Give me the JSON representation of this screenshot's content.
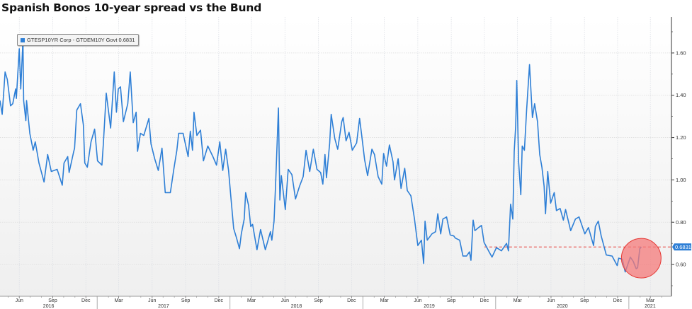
{
  "title": "Spanish Bonos 10-year spread vs the Bund",
  "colors": {
    "line": "#2e7fd6",
    "reference": "#e53935",
    "highlight": "#f47a7a",
    "background_bottom": "#efefef"
  },
  "chart_data": {
    "type": "line",
    "title": "Spanish Bonos 10-year spread vs the Bund",
    "xlim": [
      "2016-04-09",
      "2021-04-28"
    ],
    "ylim": [
      0.45,
      1.75
    ],
    "y_axis_side": "right",
    "grid": true,
    "legend": {
      "position": "top-left",
      "label": "GTESP10YR Corp - GTDEM10Y Govt 0.6831"
    },
    "last_value": 0.6831,
    "last_value_label": "0.6831",
    "reference_line": {
      "value": 0.6831,
      "from": "2019-12-01",
      "style": "dashed"
    },
    "highlight_circle": {
      "center_date": "2021-02-04",
      "center_value": 0.63
    },
    "y_ticks": [
      {
        "value": 0.6,
        "label": "0.60"
      },
      {
        "value": 0.8,
        "label": "0.80"
      },
      {
        "value": 1.0,
        "label": "1.00"
      },
      {
        "value": 1.2,
        "label": "1.20"
      },
      {
        "value": 1.4,
        "label": "1.40"
      },
      {
        "value": 1.6,
        "label": "1.60"
      }
    ],
    "x_ticks": [
      {
        "date": "2016-06-01",
        "label": "Jun"
      },
      {
        "date": "2016-09-01",
        "label": "Sep"
      },
      {
        "date": "2016-12-01",
        "label": "Dec"
      },
      {
        "date": "2017-03-01",
        "label": "Mar"
      },
      {
        "date": "2017-06-01",
        "label": "Jun"
      },
      {
        "date": "2017-09-01",
        "label": "Sep"
      },
      {
        "date": "2017-12-01",
        "label": "Dec"
      },
      {
        "date": "2018-03-01",
        "label": "Mar"
      },
      {
        "date": "2018-06-01",
        "label": "Jun"
      },
      {
        "date": "2018-09-01",
        "label": "Sep"
      },
      {
        "date": "2018-12-01",
        "label": "Dec"
      },
      {
        "date": "2019-03-01",
        "label": "Mar"
      },
      {
        "date": "2019-06-01",
        "label": "Jun"
      },
      {
        "date": "2019-09-01",
        "label": "Sep"
      },
      {
        "date": "2019-12-01",
        "label": "Dec"
      },
      {
        "date": "2020-03-01",
        "label": "Mar"
      },
      {
        "date": "2020-06-01",
        "label": "Jun"
      },
      {
        "date": "2020-09-01",
        "label": "Sep"
      },
      {
        "date": "2020-12-01",
        "label": "Dec"
      },
      {
        "date": "2021-03-01",
        "label": "Mar"
      }
    ],
    "years": [
      {
        "label": "2016",
        "start": "2016-04-09",
        "end": "2017-01-01"
      },
      {
        "label": "2017",
        "start": "2017-01-01",
        "end": "2018-01-01"
      },
      {
        "label": "2018",
        "start": "2018-01-01",
        "end": "2019-01-01"
      },
      {
        "label": "2019",
        "start": "2019-01-01",
        "end": "2020-01-01"
      },
      {
        "label": "2020",
        "start": "2020-01-01",
        "end": "2021-01-01"
      },
      {
        "label": "2021",
        "start": "2021-01-01",
        "end": "2021-04-28"
      }
    ],
    "series": [
      {
        "name": "GTESP10YR Corp - GTDEM10Y Govt",
        "points": [
          [
            "2016-04-09",
            1.375
          ],
          [
            "2016-04-15",
            1.31
          ],
          [
            "2016-04-23",
            1.51
          ],
          [
            "2016-04-29",
            1.475
          ],
          [
            "2016-05-08",
            1.35
          ],
          [
            "2016-05-14",
            1.36
          ],
          [
            "2016-05-22",
            1.43
          ],
          [
            "2016-05-24",
            1.385
          ],
          [
            "2016-06-01",
            1.62
          ],
          [
            "2016-06-05",
            1.43
          ],
          [
            "2016-06-11",
            1.66
          ],
          [
            "2016-06-13",
            1.375
          ],
          [
            "2016-06-19",
            1.28
          ],
          [
            "2016-06-21",
            1.375
          ],
          [
            "2016-06-30",
            1.22
          ],
          [
            "2016-07-09",
            1.14
          ],
          [
            "2016-07-15",
            1.18
          ],
          [
            "2016-07-25",
            1.08
          ],
          [
            "2016-08-08",
            0.99
          ],
          [
            "2016-08-18",
            1.12
          ],
          [
            "2016-08-28",
            1.04
          ],
          [
            "2016-09-13",
            1.05
          ],
          [
            "2016-09-27",
            0.975
          ],
          [
            "2016-10-02",
            1.08
          ],
          [
            "2016-10-12",
            1.11
          ],
          [
            "2016-10-16",
            1.035
          ],
          [
            "2016-10-28",
            1.13
          ],
          [
            "2016-10-31",
            1.15
          ],
          [
            "2016-11-06",
            1.33
          ],
          [
            "2016-11-16",
            1.36
          ],
          [
            "2016-11-24",
            1.26
          ],
          [
            "2016-11-28",
            1.08
          ],
          [
            "2016-12-05",
            1.06
          ],
          [
            "2016-12-15",
            1.18
          ],
          [
            "2016-12-25",
            1.24
          ],
          [
            "2017-01-02",
            1.09
          ],
          [
            "2017-01-14",
            1.07
          ],
          [
            "2017-01-18",
            1.17
          ],
          [
            "2017-01-26",
            1.41
          ],
          [
            "2017-02-07",
            1.245
          ],
          [
            "2017-02-17",
            1.51
          ],
          [
            "2017-02-23",
            1.32
          ],
          [
            "2017-02-28",
            1.43
          ],
          [
            "2017-03-06",
            1.44
          ],
          [
            "2017-03-14",
            1.275
          ],
          [
            "2017-03-26",
            1.36
          ],
          [
            "2017-04-02",
            1.51
          ],
          [
            "2017-04-10",
            1.27
          ],
          [
            "2017-04-18",
            1.32
          ],
          [
            "2017-04-22",
            1.135
          ],
          [
            "2017-04-30",
            1.22
          ],
          [
            "2017-05-09",
            1.21
          ],
          [
            "2017-05-23",
            1.29
          ],
          [
            "2017-05-29",
            1.17
          ],
          [
            "2017-06-08",
            1.1
          ],
          [
            "2017-06-18",
            1.045
          ],
          [
            "2017-06-28",
            1.15
          ],
          [
            "2017-07-07",
            0.94
          ],
          [
            "2017-07-21",
            0.94
          ],
          [
            "2017-07-31",
            1.055
          ],
          [
            "2017-08-08",
            1.14
          ],
          [
            "2017-08-13",
            1.22
          ],
          [
            "2017-08-25",
            1.22
          ],
          [
            "2017-09-08",
            1.11
          ],
          [
            "2017-09-14",
            1.23
          ],
          [
            "2017-09-20",
            1.14
          ],
          [
            "2017-09-24",
            1.32
          ],
          [
            "2017-10-02",
            1.21
          ],
          [
            "2017-10-12",
            1.235
          ],
          [
            "2017-10-20",
            1.09
          ],
          [
            "2017-11-01",
            1.16
          ],
          [
            "2017-11-15",
            1.11
          ],
          [
            "2017-11-25",
            1.07
          ],
          [
            "2017-12-04",
            1.18
          ],
          [
            "2017-12-12",
            1.045
          ],
          [
            "2017-12-20",
            1.145
          ],
          [
            "2017-12-28",
            1.045
          ],
          [
            "2018-01-03",
            0.925
          ],
          [
            "2018-01-11",
            0.77
          ],
          [
            "2018-01-19",
            0.725
          ],
          [
            "2018-01-27",
            0.675
          ],
          [
            "2018-02-01",
            0.745
          ],
          [
            "2018-02-09",
            0.815
          ],
          [
            "2018-02-13",
            0.94
          ],
          [
            "2018-02-21",
            0.88
          ],
          [
            "2018-02-27",
            0.78
          ],
          [
            "2018-03-04",
            0.79
          ],
          [
            "2018-03-16",
            0.67
          ],
          [
            "2018-03-26",
            0.765
          ],
          [
            "2018-04-08",
            0.67
          ],
          [
            "2018-04-22",
            0.755
          ],
          [
            "2018-04-26",
            0.715
          ],
          [
            "2018-05-02",
            0.805
          ],
          [
            "2018-05-06",
            0.97
          ],
          [
            "2018-05-14",
            1.34
          ],
          [
            "2018-05-18",
            0.905
          ],
          [
            "2018-05-22",
            1.02
          ],
          [
            "2018-06-02",
            0.86
          ],
          [
            "2018-06-10",
            1.05
          ],
          [
            "2018-06-20",
            1.025
          ],
          [
            "2018-06-30",
            0.91
          ],
          [
            "2018-07-11",
            0.97
          ],
          [
            "2018-07-21",
            1.015
          ],
          [
            "2018-07-29",
            1.14
          ],
          [
            "2018-08-08",
            1.04
          ],
          [
            "2018-08-18",
            1.145
          ],
          [
            "2018-08-28",
            1.05
          ],
          [
            "2018-09-07",
            1.035
          ],
          [
            "2018-09-13",
            0.98
          ],
          [
            "2018-09-19",
            1.12
          ],
          [
            "2018-09-23",
            1.01
          ],
          [
            "2018-10-02",
            1.175
          ],
          [
            "2018-10-06",
            1.31
          ],
          [
            "2018-10-16",
            1.195
          ],
          [
            "2018-10-24",
            1.145
          ],
          [
            "2018-11-04",
            1.275
          ],
          [
            "2018-11-08",
            1.295
          ],
          [
            "2018-11-16",
            1.185
          ],
          [
            "2018-11-24",
            1.225
          ],
          [
            "2018-12-03",
            1.14
          ],
          [
            "2018-12-15",
            1.175
          ],
          [
            "2018-12-23",
            1.29
          ],
          [
            "2018-12-29",
            1.21
          ],
          [
            "2019-01-06",
            1.095
          ],
          [
            "2019-01-14",
            1.02
          ],
          [
            "2019-01-26",
            1.145
          ],
          [
            "2019-02-02",
            1.12
          ],
          [
            "2019-02-12",
            1.015
          ],
          [
            "2019-02-22",
            0.98
          ],
          [
            "2019-02-27",
            1.125
          ],
          [
            "2019-03-07",
            1.065
          ],
          [
            "2019-03-15",
            1.165
          ],
          [
            "2019-03-25",
            1.085
          ],
          [
            "2019-03-29",
            1.0
          ],
          [
            "2019-04-08",
            1.1
          ],
          [
            "2019-04-16",
            0.96
          ],
          [
            "2019-04-26",
            1.055
          ],
          [
            "2019-05-03",
            0.95
          ],
          [
            "2019-05-13",
            0.925
          ],
          [
            "2019-05-23",
            0.815
          ],
          [
            "2019-06-01",
            0.69
          ],
          [
            "2019-06-11",
            0.715
          ],
          [
            "2019-06-17",
            0.605
          ],
          [
            "2019-06-21",
            0.805
          ],
          [
            "2019-06-27",
            0.715
          ],
          [
            "2019-07-10",
            0.745
          ],
          [
            "2019-07-20",
            0.755
          ],
          [
            "2019-07-26",
            0.84
          ],
          [
            "2019-08-03",
            0.745
          ],
          [
            "2019-08-09",
            0.815
          ],
          [
            "2019-08-19",
            0.825
          ],
          [
            "2019-08-29",
            0.74
          ],
          [
            "2019-09-08",
            0.735
          ],
          [
            "2019-09-12",
            0.725
          ],
          [
            "2019-09-24",
            0.715
          ],
          [
            "2019-10-03",
            0.64
          ],
          [
            "2019-10-13",
            0.64
          ],
          [
            "2019-10-21",
            0.66
          ],
          [
            "2019-10-25",
            0.62
          ],
          [
            "2019-10-31",
            0.81
          ],
          [
            "2019-11-05",
            0.76
          ],
          [
            "2019-11-15",
            0.775
          ],
          [
            "2019-11-23",
            0.785
          ],
          [
            "2019-11-30",
            0.705
          ],
          [
            "2019-12-14",
            0.66
          ],
          [
            "2019-12-22",
            0.635
          ],
          [
            "2020-01-03",
            0.68
          ],
          [
            "2020-01-17",
            0.665
          ],
          [
            "2020-01-31",
            0.7
          ],
          [
            "2020-02-05",
            0.665
          ],
          [
            "2020-02-11",
            0.885
          ],
          [
            "2020-02-17",
            0.815
          ],
          [
            "2020-02-21",
            1.135
          ],
          [
            "2020-02-25",
            1.255
          ],
          [
            "2020-02-28",
            1.47
          ],
          [
            "2020-03-04",
            1.085
          ],
          [
            "2020-03-10",
            0.93
          ],
          [
            "2020-03-14",
            1.16
          ],
          [
            "2020-03-20",
            1.14
          ],
          [
            "2020-03-26",
            1.33
          ],
          [
            "2020-04-03",
            1.545
          ],
          [
            "2020-04-11",
            1.295
          ],
          [
            "2020-04-17",
            1.36
          ],
          [
            "2020-04-25",
            1.275
          ],
          [
            "2020-05-01",
            1.12
          ],
          [
            "2020-05-07",
            1.06
          ],
          [
            "2020-05-13",
            0.97
          ],
          [
            "2020-05-17",
            0.84
          ],
          [
            "2020-05-23",
            1.04
          ],
          [
            "2020-05-31",
            0.89
          ],
          [
            "2020-06-10",
            0.94
          ],
          [
            "2020-06-16",
            0.855
          ],
          [
            "2020-06-26",
            0.865
          ],
          [
            "2020-07-05",
            0.81
          ],
          [
            "2020-07-11",
            0.86
          ],
          [
            "2020-07-25",
            0.76
          ],
          [
            "2020-08-07",
            0.815
          ],
          [
            "2020-08-17",
            0.825
          ],
          [
            "2020-09-02",
            0.745
          ],
          [
            "2020-09-12",
            0.775
          ],
          [
            "2020-09-26",
            0.69
          ],
          [
            "2020-10-01",
            0.78
          ],
          [
            "2020-10-09",
            0.805
          ],
          [
            "2020-10-17",
            0.735
          ],
          [
            "2020-10-31",
            0.645
          ],
          [
            "2020-11-16",
            0.64
          ],
          [
            "2020-11-30",
            0.595
          ],
          [
            "2020-12-04",
            0.63
          ],
          [
            "2020-12-14",
            0.625
          ],
          [
            "2020-12-22",
            0.565
          ],
          [
            "2021-01-01",
            0.615
          ],
          [
            "2021-01-05",
            0.635
          ],
          [
            "2021-01-13",
            0.615
          ],
          [
            "2021-01-21",
            0.58
          ],
          [
            "2021-01-25",
            0.585
          ],
          [
            "2021-01-31",
            0.675
          ],
          [
            "2021-02-04",
            0.6831
          ]
        ]
      }
    ]
  }
}
